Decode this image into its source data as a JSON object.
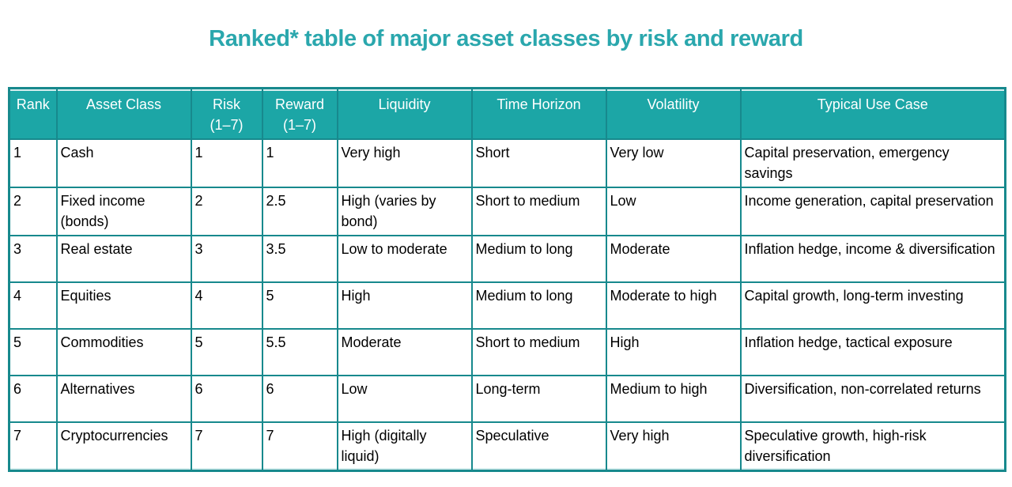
{
  "title": "Ranked* table of major asset classes by risk and reward",
  "chart_data": {
    "type": "table",
    "title": "Ranked* table of major asset classes by risk and reward",
    "columns": [
      "Rank",
      "Asset Class",
      "Risk\n(1–7)",
      "Reward\n(1–7)",
      "Liquidity",
      "Time Horizon",
      "Volatility",
      "Typical Use Case"
    ],
    "rows": [
      [
        "1",
        "Cash",
        "1",
        "1",
        "Very high",
        "Short",
        "Very low",
        "Capital preservation, emergency savings"
      ],
      [
        "2",
        "Fixed income (bonds)",
        "2",
        "2.5",
        "High (varies by bond)",
        "Short to medium",
        "Low",
        "Income generation, capital preservation"
      ],
      [
        "3",
        "Real estate",
        "3",
        "3.5",
        "Low to moderate",
        "Medium to long",
        "Moderate",
        "Inflation hedge, income & diversification"
      ],
      [
        "4",
        "Equities",
        "4",
        "5",
        "High",
        "Medium to long",
        "Moderate to high",
        "Capital growth, long-term investing"
      ],
      [
        "5",
        "Commodities",
        "5",
        "5.5",
        "Moderate",
        "Short to medium",
        "High",
        "Inflation hedge, tactical exposure"
      ],
      [
        "6",
        "Alternatives",
        "6",
        "6",
        "Low",
        "Long-term",
        "Medium to high",
        "Diversification, non-correlated returns"
      ],
      [
        "7",
        "Cryptocurrencies",
        "7",
        "7",
        "High (digitally liquid)",
        "Speculative",
        "Very high",
        "Speculative growth, high-risk diversification"
      ]
    ]
  },
  "colors": {
    "title_text": "#2aa7ad",
    "header_background": "#1ca6a6",
    "header_text": "#ffffff",
    "table_border": "#17898d",
    "body_text": "#000000",
    "page_background": "#ffffff"
  }
}
